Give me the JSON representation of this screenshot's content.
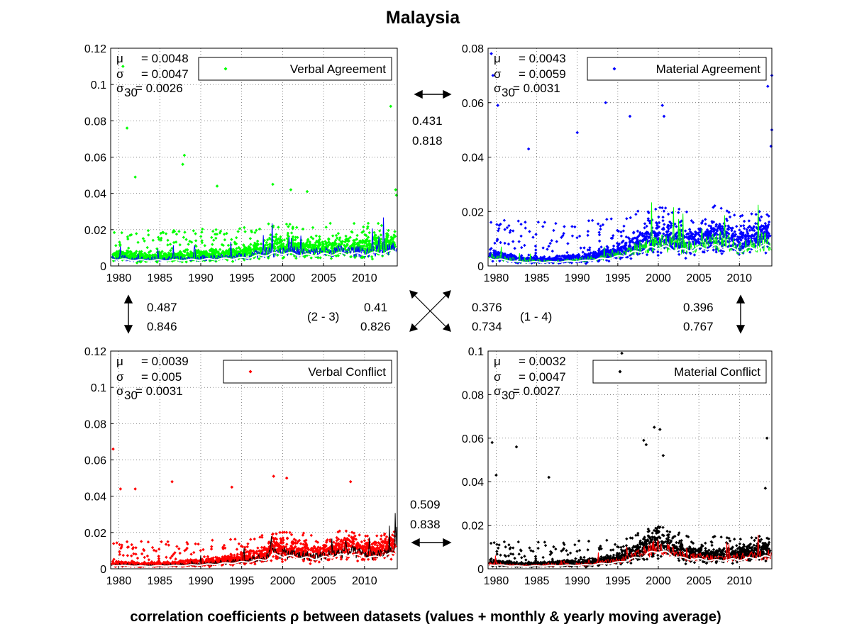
{
  "title": "Malaysia",
  "caption": "correlation coefficients ρ between datasets (values + monthly & yearly moving average)",
  "x_tick_labels": [
    "1980",
    "1985",
    "1990",
    "1995",
    "2000",
    "2005",
    "2010"
  ],
  "chart_data": [
    {
      "type": "scatter",
      "legend": "Verbal Agreement",
      "color": "#00ff00",
      "line_colors": {
        "monthly": "#0000ff",
        "yearly": "#ffffff"
      },
      "ylim": [
        0,
        0.12
      ],
      "yticks": [
        "0",
        "0.02",
        "0.04",
        "0.06",
        "0.08",
        "0.1",
        "0.12"
      ],
      "xlim": [
        1979,
        2014
      ],
      "stats": {
        "mu": "= 0.0048",
        "sigma": "= 0.0047",
        "sigma30": "= 0.0026"
      },
      "labels": {
        "mu": "μ",
        "sigma": "σ",
        "sigma30_base": "σ",
        "sigma30_sub": "30"
      },
      "base_level": 0.0048,
      "yearly_moving_average": [
        [
          1979,
          0.004
        ],
        [
          1983,
          0.0032
        ],
        [
          1987,
          0.0033
        ],
        [
          1991,
          0.0038
        ],
        [
          1995,
          0.0045
        ],
        [
          1998,
          0.0065
        ],
        [
          2000,
          0.0075
        ],
        [
          2003,
          0.0062
        ],
        [
          2007,
          0.0072
        ],
        [
          2010,
          0.0068
        ],
        [
          2014,
          0.0085
        ]
      ],
      "outliers": [
        [
          1980.5,
          0.11
        ],
        [
          1981,
          0.076
        ],
        [
          1982,
          0.049
        ],
        [
          1988,
          0.061
        ],
        [
          1987.8,
          0.056
        ],
        [
          1992,
          0.044
        ],
        [
          1998.8,
          0.045
        ],
        [
          2001,
          0.042
        ],
        [
          2003,
          0.041
        ],
        [
          2013.2,
          0.088
        ],
        [
          2013.8,
          0.042
        ],
        [
          2013.9,
          0.039
        ]
      ]
    },
    {
      "type": "scatter",
      "legend": "Material Agreement",
      "color": "#0000ff",
      "line_colors": {
        "monthly": "#00ff00",
        "yearly": "#ffffff"
      },
      "ylim": [
        0,
        0.08
      ],
      "yticks": [
        "0",
        "0.02",
        "0.04",
        "0.06",
        "0.08"
      ],
      "xlim": [
        1979,
        2014
      ],
      "stats": {
        "mu": "= 0.0043",
        "sigma": "= 0.0059",
        "sigma30": "= 0.0031"
      },
      "labels": {
        "mu": "μ",
        "sigma": "σ",
        "sigma30_base": "σ",
        "sigma30_sub": "30"
      },
      "base_level": 0.0043,
      "yearly_moving_average": [
        [
          1979,
          0.003
        ],
        [
          1983,
          0.0015
        ],
        [
          1987,
          0.0015
        ],
        [
          1991,
          0.002
        ],
        [
          1995,
          0.0035
        ],
        [
          1998,
          0.006
        ],
        [
          2000,
          0.0075
        ],
        [
          2003,
          0.006
        ],
        [
          2007,
          0.0075
        ],
        [
          2010,
          0.006
        ],
        [
          2014,
          0.008
        ]
      ],
      "outliers": [
        [
          1979.4,
          0.078
        ],
        [
          1979.6,
          0.07
        ],
        [
          1980.2,
          0.059
        ],
        [
          1984,
          0.043
        ],
        [
          1990,
          0.049
        ],
        [
          1993.5,
          0.06
        ],
        [
          1996.5,
          0.055
        ],
        [
          2000.5,
          0.059
        ],
        [
          2000.7,
          0.055
        ],
        [
          2013.5,
          0.066
        ],
        [
          2014,
          0.07
        ],
        [
          2014,
          0.05
        ],
        [
          2013.9,
          0.044
        ]
      ]
    },
    {
      "type": "scatter",
      "legend": "Verbal Conflict",
      "color": "#ff0000",
      "line_colors": {
        "monthly": "#000000",
        "yearly": "#ffffff"
      },
      "ylim": [
        0,
        0.12
      ],
      "yticks": [
        "0",
        "0.02",
        "0.04",
        "0.06",
        "0.08",
        "0.1",
        "0.12"
      ],
      "xlim": [
        1979,
        2014
      ],
      "stats": {
        "mu": "= 0.0039",
        "sigma": "= 0.005",
        "sigma30": "= 0.0031"
      },
      "labels": {
        "mu": "μ",
        "sigma": "σ",
        "sigma30_base": "σ",
        "sigma30_sub": "30"
      },
      "base_level": 0.0039,
      "yearly_moving_average": [
        [
          1979,
          0.002
        ],
        [
          1983,
          0.0015
        ],
        [
          1987,
          0.0018
        ],
        [
          1991,
          0.0025
        ],
        [
          1995,
          0.0038
        ],
        [
          1998,
          0.0055
        ],
        [
          1999,
          0.008
        ],
        [
          2001,
          0.007
        ],
        [
          2004,
          0.0058
        ],
        [
          2008,
          0.0082
        ],
        [
          2011,
          0.0065
        ],
        [
          2014,
          0.009
        ]
      ],
      "outliers": [
        [
          1979.3,
          0.066
        ],
        [
          1980.2,
          0.044
        ],
        [
          1982,
          0.044
        ],
        [
          1986.5,
          0.048
        ],
        [
          1993.8,
          0.045
        ],
        [
          1998.9,
          0.051
        ],
        [
          2000.5,
          0.05
        ],
        [
          2008.3,
          0.048
        ]
      ]
    },
    {
      "type": "scatter",
      "legend": "Material Conflict",
      "color": "#000000",
      "line_colors": {
        "monthly": "#ff0000",
        "yearly": "#ffffff"
      },
      "ylim": [
        0,
        0.1
      ],
      "yticks": [
        "0",
        "0.02",
        "0.04",
        "0.06",
        "0.08",
        "0.1"
      ],
      "xlim": [
        1979,
        2014
      ],
      "stats": {
        "mu": "= 0.0032",
        "sigma": "= 0.0047",
        "sigma30": "= 0.0027"
      },
      "labels": {
        "mu": "μ",
        "sigma": "σ",
        "sigma30_base": "σ",
        "sigma30_sub": "30"
      },
      "base_level": 0.0032,
      "yearly_moving_average": [
        [
          1979,
          0.002
        ],
        [
          1983,
          0.0012
        ],
        [
          1987,
          0.0015
        ],
        [
          1991,
          0.0018
        ],
        [
          1995,
          0.003
        ],
        [
          1998,
          0.006
        ],
        [
          2000,
          0.009
        ],
        [
          2003,
          0.005
        ],
        [
          2007,
          0.004
        ],
        [
          2010,
          0.0045
        ],
        [
          2014,
          0.006
        ]
      ],
      "outliers": [
        [
          1979.5,
          0.058
        ],
        [
          1980,
          0.043
        ],
        [
          1982.5,
          0.056
        ],
        [
          1986.5,
          0.042
        ],
        [
          1995.5,
          0.099
        ],
        [
          1998.2,
          0.059
        ],
        [
          1998.5,
          0.057
        ],
        [
          1999.5,
          0.065
        ],
        [
          2000.2,
          0.064
        ],
        [
          2000.6,
          0.052
        ],
        [
          2013.4,
          0.06
        ],
        [
          2013.2,
          0.037
        ]
      ]
    }
  ],
  "correlations": {
    "top": {
      "a": "0.431",
      "b": "0.818"
    },
    "bottom": {
      "a": "0.509",
      "b": "0.838"
    },
    "left": {
      "a": "0.487",
      "b": "0.846"
    },
    "right": {
      "a": "0.396",
      "b": "0.767"
    },
    "diag_2_3": {
      "label": "(2 - 3)",
      "a": "0.41",
      "b": "0.826"
    },
    "diag_1_4": {
      "label": "(1 - 4)",
      "a": "0.376",
      "b": "0.734"
    }
  }
}
